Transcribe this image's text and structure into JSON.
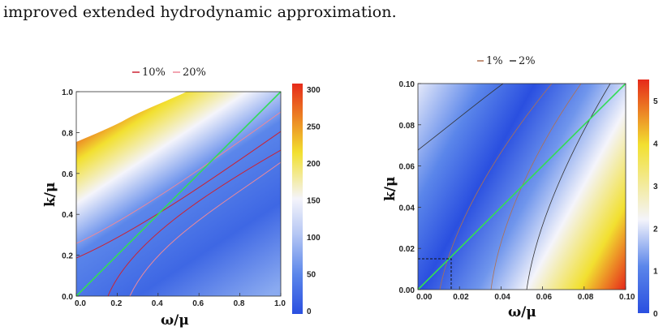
{
  "caption": "improved extended hydrodynamic approximation.",
  "colors": {
    "line_green": "#33dd55",
    "contour_10pct": "#cc2233",
    "contour_20pct": "#ee8899",
    "contour_1pct": "#b07050",
    "contour_2pct": "#333333",
    "cmap": [
      "#2a4fe0",
      "#5b86ea",
      "#f4f4fb",
      "#f2e030",
      "#e62a1a"
    ]
  },
  "chart_data": [
    {
      "type": "heatmap",
      "title": "",
      "xlabel": "ω/μ",
      "ylabel": "k/μ",
      "xlim": [
        0,
        1
      ],
      "ylim": [
        0,
        1
      ],
      "x_ticks": [
        "0.0",
        "0.2",
        "0.4",
        "0.6",
        "0.8",
        "1.0"
      ],
      "y_ticks": [
        "0.0",
        "0.2",
        "0.4",
        "0.6",
        "0.8",
        "1.0"
      ],
      "legend": [
        {
          "label": "10%",
          "color": "#cc2233"
        },
        {
          "label": "20%",
          "color": "#ee8899"
        }
      ],
      "colorbar": {
        "range": [
          0,
          300
        ],
        "ticks": [
          "0",
          "50",
          "100",
          "150",
          "200",
          "250",
          "300"
        ]
      },
      "diagonal_line": {
        "from": [
          0,
          0
        ],
        "to": [
          1,
          1
        ],
        "color": "#33dd55"
      },
      "saturated_region": "upper-left above k/μ ≈ 0.75 at ω/μ = 0 (white)"
    },
    {
      "type": "heatmap",
      "title": "",
      "xlabel": "ω/μ",
      "ylabel": "k/μ",
      "xlim": [
        0,
        0.1
      ],
      "ylim": [
        0,
        0.1
      ],
      "x_ticks": [
        "0.00",
        "0.02",
        "0.04",
        "0.06",
        "0.08",
        "0.10"
      ],
      "y_ticks": [
        "0.00",
        "0.02",
        "0.04",
        "0.06",
        "0.08",
        "0.10"
      ],
      "legend": [
        {
          "label": "1%",
          "color": "#b07050"
        },
        {
          "label": "2%",
          "color": "#333333"
        }
      ],
      "colorbar": {
        "range": [
          0,
          5.5
        ],
        "ticks": [
          "0",
          "1",
          "2",
          "3",
          "4",
          "5"
        ]
      },
      "diagonal_line": {
        "from": [
          0,
          0
        ],
        "to": [
          0.1,
          0.1
        ],
        "color": "#33dd55"
      },
      "dashed_box": {
        "x": 0.016,
        "y": 0.015
      }
    }
  ]
}
